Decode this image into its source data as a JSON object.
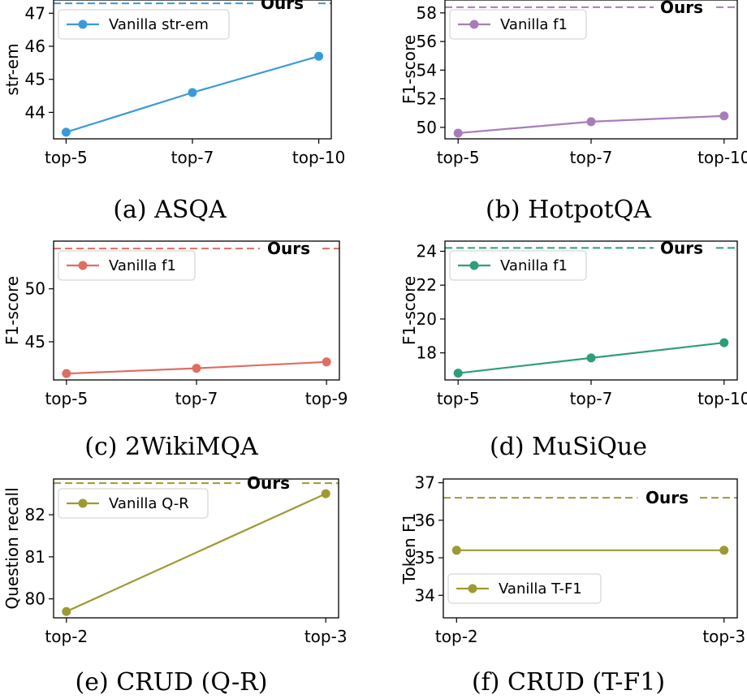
{
  "chart_data": [
    {
      "type": "line",
      "caption": "(a) ASQA",
      "ylabel": "str-em",
      "categories": [
        "top-5",
        "top-7",
        "top-10"
      ],
      "ylim": [
        43.2,
        47.4
      ],
      "yticks": [
        44,
        45,
        46,
        47
      ],
      "series": [
        {
          "name": "Vanilla str-em",
          "values": [
            43.4,
            44.6,
            45.7
          ],
          "color": "#3a9ad9"
        }
      ],
      "reference": {
        "label": "Ours",
        "value": 47.3,
        "color": "#3a9ad9"
      },
      "legend_position": "upper-left",
      "ours_label_position": "top-right"
    },
    {
      "type": "line",
      "caption": "(b) HotpotQA",
      "ylabel": "F1-score",
      "categories": [
        "top-5",
        "top-7",
        "top-10"
      ],
      "ylim": [
        49.2,
        58.9
      ],
      "yticks": [
        50,
        52,
        54,
        56,
        58
      ],
      "series": [
        {
          "name": "Vanilla f1",
          "values": [
            49.6,
            50.4,
            50.8
          ],
          "color": "#a77db9"
        }
      ],
      "reference": {
        "label": "Ours",
        "value": 58.4,
        "color": "#a77db9"
      },
      "legend_position": "upper-left",
      "ours_label_position": "top-right"
    },
    {
      "type": "line",
      "caption": "(c) 2WikiMQA",
      "ylabel": "F1-score",
      "categories": [
        "top-5",
        "top-7",
        "top-9"
      ],
      "ylim": [
        41.4,
        54.5
      ],
      "yticks": [
        45,
        50
      ],
      "series": [
        {
          "name": "Vanilla f1",
          "values": [
            42.0,
            42.5,
            43.1
          ],
          "color": "#dd6e62"
        }
      ],
      "reference": {
        "label": "Ours",
        "value": 53.8,
        "color": "#dd6e62"
      },
      "legend_position": "upper-left",
      "ours_label_position": "top-right"
    },
    {
      "type": "line",
      "caption": "(d) MuSiQue",
      "ylabel": "F1-score",
      "categories": [
        "top-5",
        "top-7",
        "top-10"
      ],
      "ylim": [
        16.4,
        24.6
      ],
      "yticks": [
        18,
        20,
        22,
        24
      ],
      "series": [
        {
          "name": "Vanilla f1",
          "values": [
            16.8,
            17.7,
            18.6
          ],
          "color": "#2e9e77"
        }
      ],
      "reference": {
        "label": "Ours",
        "value": 24.2,
        "color": "#2e9e77"
      },
      "legend_position": "upper-left",
      "ours_label_position": "top-right"
    },
    {
      "type": "line",
      "caption": "(e) CRUD (Q-R)",
      "ylabel": "Question recall",
      "categories": [
        "top-2",
        "top-3"
      ],
      "ylim": [
        79.55,
        82.85
      ],
      "yticks": [
        80,
        81,
        82
      ],
      "series": [
        {
          "name": "Vanilla Q-R",
          "values": [
            79.7,
            82.5
          ],
          "color": "#9e9a33"
        }
      ],
      "reference": {
        "label": "Ours",
        "value": 82.75,
        "color": "#9e9a33"
      },
      "legend_position": "upper-left",
      "ours_label_position": "top-right"
    },
    {
      "type": "line",
      "caption": "(f) CRUD (T-F1)",
      "ylabel": "Token F1",
      "categories": [
        "top-2",
        "top-3"
      ],
      "ylim": [
        33.4,
        37.1
      ],
      "yticks": [
        34,
        35,
        36,
        37
      ],
      "series": [
        {
          "name": "Vanilla T-F1",
          "values": [
            35.2,
            35.2
          ],
          "color": "#9e9a33"
        }
      ],
      "reference": {
        "label": "Ours",
        "value": 36.6,
        "color": "#9e9a33"
      },
      "legend_position": "lower-left",
      "ours_label_position": "upper-right"
    }
  ]
}
